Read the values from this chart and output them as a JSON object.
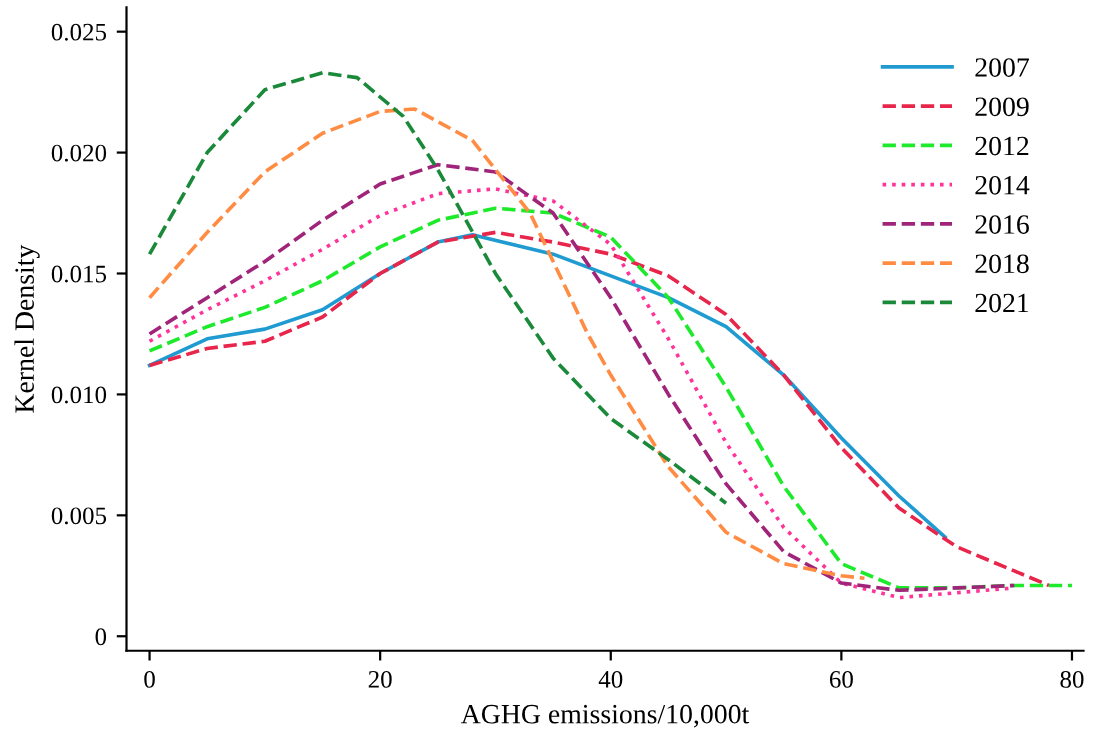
{
  "chart_data": {
    "type": "line",
    "xlabel": "AGHG emissions/10,000t",
    "ylabel": "Kernel Density",
    "xlim": [
      -2,
      81
    ],
    "ylim": [
      -0.0006,
      0.026
    ],
    "xticks": [
      0,
      20,
      40,
      60,
      80
    ],
    "yticks": [
      0,
      {
        "value": 0.005,
        "label": "0.005"
      },
      {
        "value": 0.01,
        "label": "0.010"
      },
      {
        "value": 0.015,
        "label": "0.015"
      },
      {
        "value": 0.02,
        "label": "0.020"
      },
      {
        "value": 0.025,
        "label": "0.025"
      }
    ],
    "grid": false,
    "legend": "right",
    "marker": "none",
    "series": [
      {
        "name": "2007",
        "color": "#1f9bd1",
        "line_style": "solid",
        "x": [
          0,
          5,
          10,
          15,
          20,
          25,
          28,
          35,
          40,
          45,
          50,
          55,
          60,
          65,
          69
        ],
        "values": [
          0.0112,
          0.0123,
          0.0127,
          0.0135,
          0.015,
          0.0163,
          0.0166,
          0.0158,
          0.0149,
          0.014,
          0.0128,
          0.0108,
          0.0082,
          0.0058,
          0.0041
        ]
      },
      {
        "name": "2009",
        "color": "#e8254a",
        "line_style": "dashed",
        "x": [
          0,
          5,
          10,
          15,
          20,
          25,
          30,
          35,
          40,
          45,
          50,
          55,
          60,
          65,
          70,
          75,
          78
        ],
        "values": [
          0.0112,
          0.0119,
          0.0122,
          0.0132,
          0.015,
          0.0163,
          0.0167,
          0.0163,
          0.0158,
          0.0149,
          0.0133,
          0.0108,
          0.0078,
          0.0053,
          0.0037,
          0.0027,
          0.0021
        ]
      },
      {
        "name": "2012",
        "color": "#1eea2c",
        "line_style": "dashed",
        "x": [
          0,
          5,
          10,
          15,
          20,
          25,
          30,
          35,
          40,
          45,
          50,
          55,
          60,
          65,
          70,
          75,
          80
        ],
        "values": [
          0.0118,
          0.0128,
          0.0136,
          0.0147,
          0.0161,
          0.0172,
          0.0177,
          0.0175,
          0.0165,
          0.014,
          0.0103,
          0.0062,
          0.003,
          0.002,
          0.002,
          0.0021,
          0.0021
        ]
      },
      {
        "name": "2014",
        "color": "#ff3399",
        "line_style": "dotted",
        "x": [
          0,
          5,
          10,
          15,
          20,
          25,
          30,
          35,
          40,
          45,
          50,
          55,
          60,
          65,
          70,
          75
        ],
        "values": [
          0.0122,
          0.0135,
          0.0147,
          0.016,
          0.0174,
          0.0183,
          0.0185,
          0.018,
          0.0162,
          0.0123,
          0.008,
          0.0045,
          0.0022,
          0.0016,
          0.0018,
          0.002
        ]
      },
      {
        "name": "2016",
        "color": "#a0247a",
        "line_style": "dashed",
        "x": [
          0,
          5,
          10,
          15,
          20,
          25,
          30,
          35,
          40,
          45,
          50,
          55,
          60,
          65,
          70,
          75
        ],
        "values": [
          0.0125,
          0.014,
          0.0155,
          0.0172,
          0.0187,
          0.0195,
          0.0192,
          0.0175,
          0.014,
          0.01,
          0.0063,
          0.0035,
          0.0022,
          0.0019,
          0.002,
          0.0021
        ]
      },
      {
        "name": "2018",
        "color": "#ff8c42",
        "line_style": "dashed",
        "x": [
          0,
          5,
          10,
          15,
          20,
          23,
          28,
          33,
          38,
          40,
          45,
          50,
          55,
          60,
          62
        ],
        "values": [
          0.014,
          0.0167,
          0.0192,
          0.0208,
          0.0217,
          0.0218,
          0.0205,
          0.0175,
          0.0125,
          0.0108,
          0.007,
          0.0043,
          0.003,
          0.0025,
          0.0024
        ]
      },
      {
        "name": "2021",
        "color": "#1a8a3a",
        "line_style": "dashed",
        "x": [
          0,
          5,
          10,
          15,
          18,
          22,
          25,
          30,
          35,
          40,
          45,
          50
        ],
        "values": [
          0.0158,
          0.02,
          0.0226,
          0.0233,
          0.0231,
          0.0215,
          0.0193,
          0.015,
          0.0115,
          0.009,
          0.0073,
          0.0055
        ]
      }
    ]
  }
}
